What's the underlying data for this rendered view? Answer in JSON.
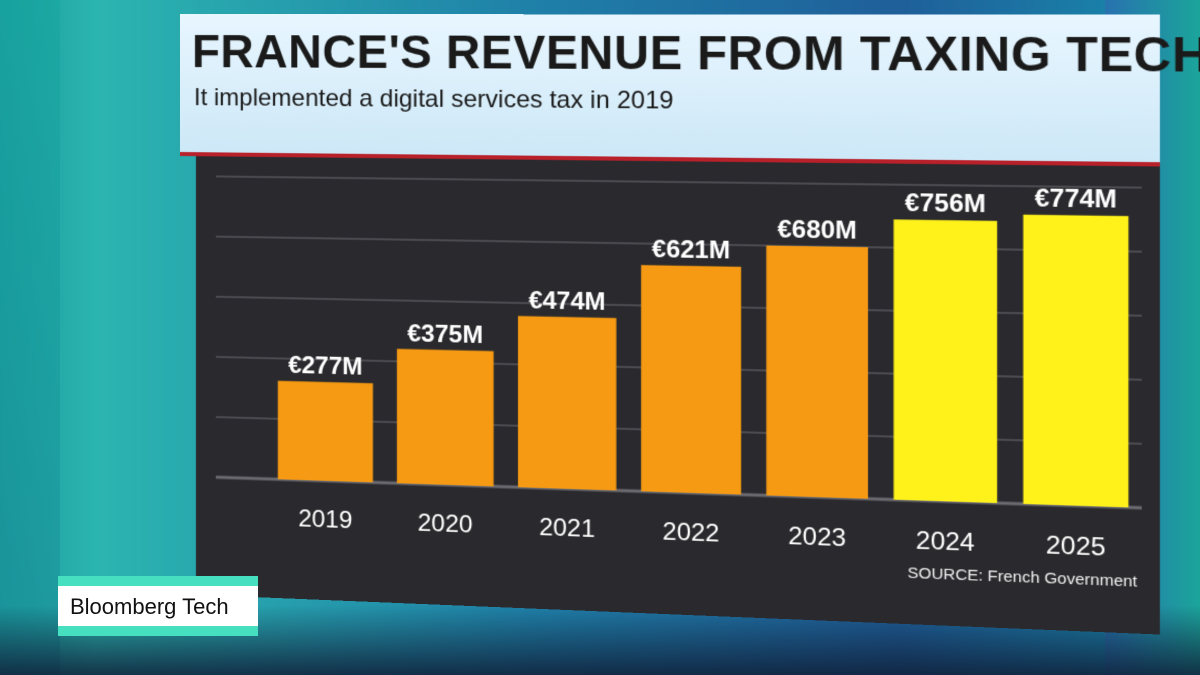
{
  "header": {
    "title": "FRANCE'S REVENUE FROM TAXING TECH",
    "subtitle": "It implemented a digital services tax in 2019"
  },
  "source": "SOURCE: French Government",
  "brand": "Bloomberg Tech",
  "colors": {
    "bar_actual": "#f59a12",
    "bar_projected": "#fff21a",
    "panel_bg": "#2a2a2e",
    "accent_red": "#b8202a"
  },
  "chart_data": {
    "type": "bar",
    "title": "FRANCE'S REVENUE FROM TAXING TECH",
    "subtitle": "It implemented a digital services tax in 2019",
    "categories": [
      "2019",
      "2020",
      "2021",
      "2022",
      "2023",
      "2024",
      "2025"
    ],
    "values": [
      277,
      375,
      474,
      621,
      680,
      756,
      774
    ],
    "data_labels": [
      "€277M",
      "€375M",
      "€474M",
      "€621M",
      "€680M",
      "€756M",
      "€774M"
    ],
    "bar_colors": [
      "#f59a12",
      "#f59a12",
      "#f59a12",
      "#f59a12",
      "#f59a12",
      "#fff21a",
      "#fff21a"
    ],
    "xlabel": "",
    "ylabel": "",
    "ylim": [
      0,
      850
    ],
    "grid": true
  }
}
